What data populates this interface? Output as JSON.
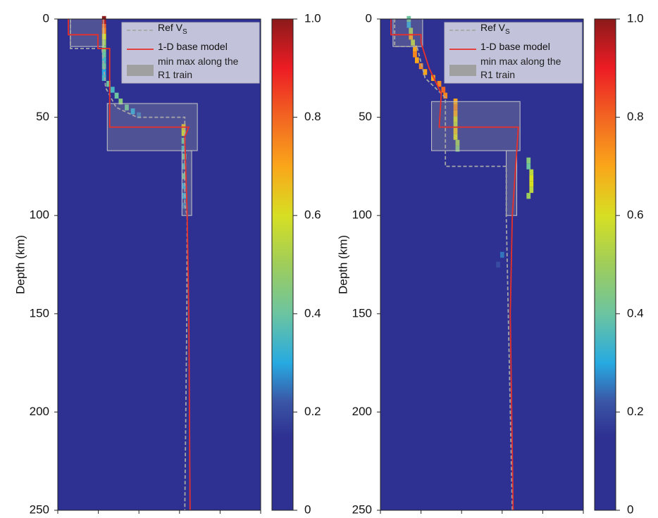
{
  "chart_data": [
    {
      "type": "heatmap",
      "ylabel": "Depth (km)",
      "ylim": [
        0,
        250
      ],
      "yticks": [
        0,
        50,
        100,
        150,
        200,
        250
      ],
      "xlim": [
        0,
        5
      ],
      "xticks": [
        0,
        1,
        2,
        3,
        4,
        5
      ],
      "colorbar": {
        "lim": [
          0,
          1
        ],
        "ticks": [
          0,
          0.2,
          0.4,
          0.6,
          0.8,
          {
            "value": 1,
            "label": "1.0"
          }
        ]
      },
      "cells": {
        "x": [
          1.14,
          1.14,
          1.14,
          1.14,
          1.14,
          1.14,
          1.14,
          1.14,
          1.14,
          1.14,
          1.14,
          1.14,
          1.25,
          1.35,
          1.45,
          1.55,
          1.7,
          1.85,
          2.0,
          3.1,
          3.1,
          3.1,
          3.1,
          3.12,
          3.12,
          3.12,
          3.12,
          3.12,
          3.12
        ],
        "depth": [
          0,
          2,
          4,
          6,
          9,
          12,
          15,
          18,
          21,
          24,
          27,
          30,
          33,
          36,
          39,
          42,
          45,
          47,
          49,
          55,
          58,
          62,
          66,
          70,
          75,
          80,
          85,
          90,
          95
        ],
        "values": [
          1.0,
          0.95,
          0.8,
          0.75,
          0.6,
          0.5,
          0.45,
          0.4,
          0.35,
          0.4,
          0.3,
          0.35,
          0.4,
          0.35,
          0.4,
          0.45,
          0.4,
          0.3,
          0.25,
          0.65,
          0.6,
          0.4,
          0.35,
          0.4,
          0.35,
          0.4,
          0.3,
          0.3,
          0.25
        ]
      },
      "series": [
        {
          "name": "Ref V",
          "name_subscript": "S",
          "color": "#a6a6a6",
          "style": "dashed",
          "x": [
            0.31,
            0.31,
            1.09,
            1.18,
            1.44,
            1.96,
            3.13,
            3.13,
            3.19,
            3.18,
            3.13
          ],
          "y": [
            0,
            15,
            15,
            35,
            45,
            50,
            50,
            95,
            100,
            150,
            250
          ]
        },
        {
          "name": "1-D base model",
          "color": "#e8302a",
          "style": "solid",
          "x": [
            0.26,
            0.26,
            0.99,
            0.99,
            1.28,
            1.28,
            3.23,
            3.13,
            3.19,
            3.23,
            3.26
          ],
          "y": [
            0,
            8,
            8,
            15,
            15,
            55,
            55,
            60,
            100,
            150,
            250
          ]
        }
      ],
      "ranges": {
        "name": "min max along the R1 train",
        "color": "#a0a0a0",
        "boxes": [
          {
            "x": [
              0.31,
              1.13
            ],
            "y": [
              0,
              14
            ]
          },
          {
            "x": [
              1.22,
              3.44
            ],
            "y": [
              43,
              67
            ]
          },
          {
            "x": [
              3.06,
              3.3
            ],
            "y": [
              67,
              100
            ]
          }
        ]
      }
    },
    {
      "type": "heatmap",
      "ylabel": "Depth (km)",
      "ylim": [
        0,
        250
      ],
      "yticks": [
        0,
        50,
        100,
        150,
        200,
        250
      ],
      "xlim": [
        0,
        5
      ],
      "xticks": [
        0,
        1,
        2,
        3,
        4,
        5
      ],
      "colorbar": {
        "lim": [
          0,
          1
        ],
        "ticks": [
          0,
          0.2,
          0.4,
          0.6,
          0.8,
          {
            "value": 1,
            "label": "1.0"
          }
        ]
      },
      "cells": {
        "x": [
          0.7,
          0.7,
          0.75,
          0.75,
          0.8,
          0.85,
          0.85,
          0.9,
          1.0,
          1.1,
          1.3,
          1.45,
          1.55,
          1.6,
          1.85,
          1.85,
          1.85,
          1.85,
          1.85,
          1.85,
          1.85,
          1.9,
          1.9,
          3.65,
          3.65,
          3.72,
          3.72,
          3.72,
          3.72,
          3.65,
          3.0,
          2.9
        ],
        "depth": [
          0,
          3,
          6,
          9,
          12,
          15,
          18,
          21,
          24,
          27,
          30,
          33,
          36,
          39,
          42,
          45,
          48,
          51,
          54,
          57,
          60,
          63,
          66,
          72,
          75,
          78,
          81,
          84,
          87,
          90,
          120,
          125
        ],
        "values": [
          0.4,
          0.3,
          0.5,
          0.7,
          0.55,
          0.7,
          0.75,
          0.7,
          0.75,
          0.7,
          0.7,
          0.75,
          0.8,
          0.75,
          0.7,
          0.75,
          0.7,
          0.6,
          0.55,
          0.65,
          0.6,
          0.5,
          0.45,
          0.45,
          0.4,
          0.55,
          0.6,
          0.6,
          0.55,
          0.5,
          0.25,
          0.2
        ]
      },
      "series": [
        {
          "name": "Ref V",
          "name_subscript": "S",
          "color": "#a6a6a6",
          "style": "dashed",
          "x": [
            0.35,
            0.35,
            0.9,
            1.1,
            1.6,
            1.6,
            3.1,
            3.1,
            3.25
          ],
          "y": [
            0,
            14,
            14,
            30,
            40,
            75,
            75,
            100,
            250
          ]
        },
        {
          "name": "1-D base model",
          "color": "#e8302a",
          "style": "solid",
          "x": [
            0.26,
            0.26,
            1.0,
            1.0,
            1.2,
            1.5,
            1.45,
            3.4,
            3.25,
            3.2,
            3.27
          ],
          "y": [
            0,
            8,
            8,
            12,
            25,
            38,
            55,
            55,
            100,
            150,
            250
          ]
        }
      ],
      "ranges": {
        "name": "min max along the R1 train",
        "color": "#a0a0a0",
        "boxes": [
          {
            "x": [
              0.31,
              1.04
            ],
            "y": [
              0,
              14
            ]
          },
          {
            "x": [
              1.26,
              3.44
            ],
            "y": [
              42,
              67
            ]
          },
          {
            "x": [
              3.1,
              3.36
            ],
            "y": [
              67,
              100
            ]
          }
        ]
      }
    }
  ]
}
